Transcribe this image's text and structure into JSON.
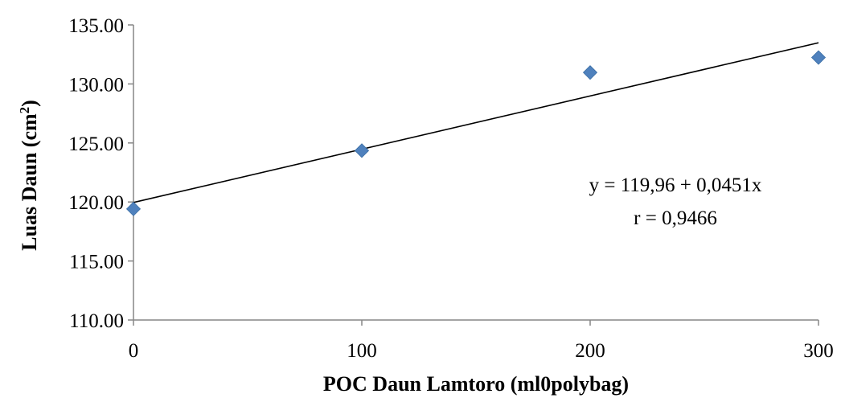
{
  "chart_data": {
    "type": "scatter",
    "x": [
      0,
      100,
      200,
      300
    ],
    "y": [
      119.41,
      124.35,
      130.97,
      132.24
    ],
    "xticks": [
      0,
      100,
      200,
      300
    ],
    "xtick_labels": [
      "0",
      "100",
      "200",
      "300"
    ],
    "yticks": [
      110,
      115,
      120,
      125,
      130,
      135
    ],
    "ytick_labels": [
      "110.00",
      "115.00",
      "120.00",
      "125.00",
      "130.00",
      "135.00"
    ],
    "xlim": [
      0,
      300
    ],
    "ylim": [
      110,
      135
    ],
    "xlabel": "POC Daun Lamtoro (ml0polybag)",
    "ylabel_main": "Luas Daun (cm",
    "ylabel_sup": "2",
    "ylabel_end": ")",
    "marker": "diamond",
    "marker_color": "#4F81BD",
    "trendline": {
      "intercept": 119.96,
      "slope": 0.0451,
      "color": "#000000"
    },
    "annotations": [
      "y = 119,96 + 0,0451x",
      "r = 0,9466"
    ],
    "grid": false,
    "legend": "none"
  }
}
